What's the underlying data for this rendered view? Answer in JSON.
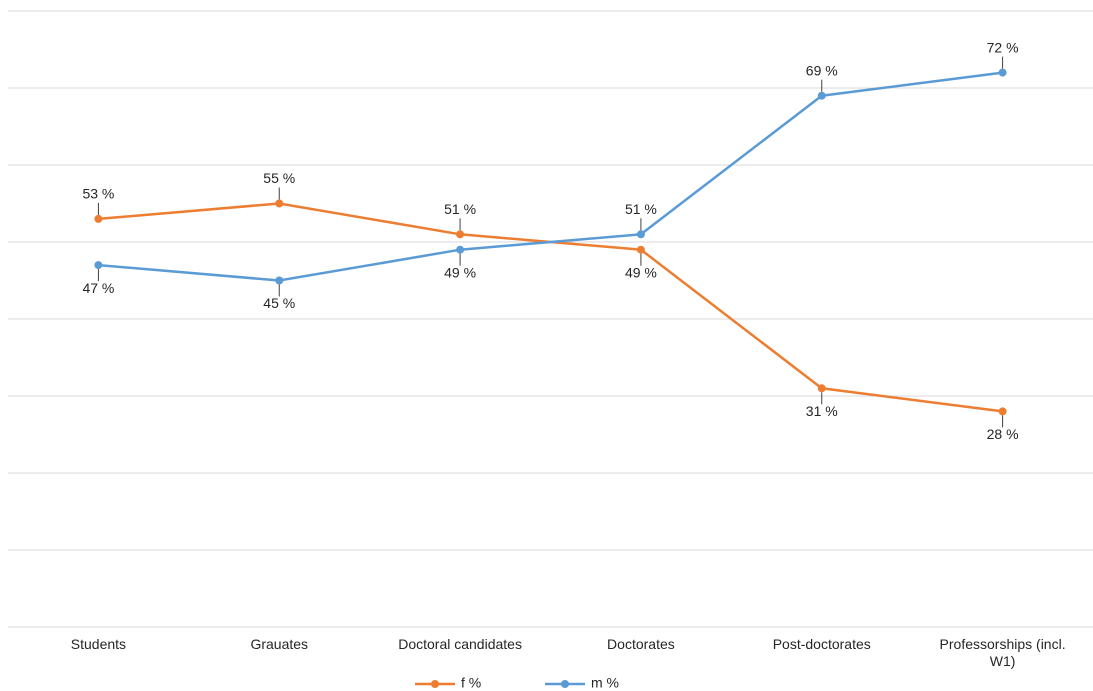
{
  "chart_data": {
    "type": "line",
    "categories": [
      "Students",
      "Grauates",
      "Doctoral candidates",
      "Doctorates",
      "Post-doctorates",
      "Professorships (incl. W1)"
    ],
    "series": [
      {
        "name": "f %",
        "color": "#ed7d31",
        "values": [
          53,
          55,
          51,
          49,
          31,
          28
        ],
        "value_labels": [
          "53 %",
          "55 %",
          "51 %",
          "49 %",
          "31 %",
          "28 %"
        ]
      },
      {
        "name": "m %",
        "color": "#5b9bd5",
        "values": [
          47,
          45,
          49,
          51,
          69,
          72
        ],
        "value_labels": [
          "47 %",
          "45 %",
          "49 %",
          "51 %",
          "69 %",
          "72 %"
        ]
      }
    ],
    "ylim": [
      0,
      80
    ],
    "yticks": [
      0,
      10,
      20,
      30,
      40,
      50,
      60,
      70,
      80
    ],
    "grid": true,
    "legend": "bottom"
  }
}
